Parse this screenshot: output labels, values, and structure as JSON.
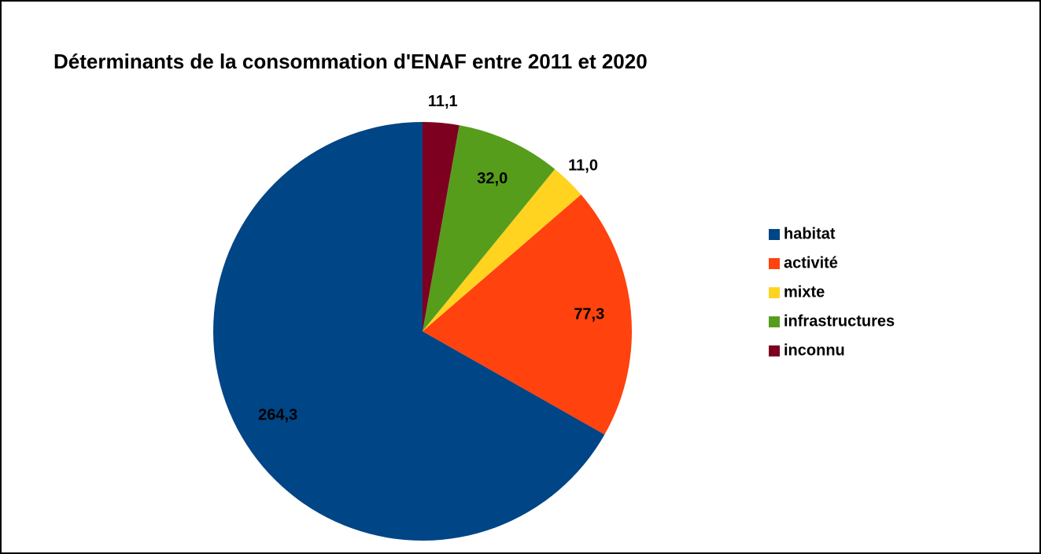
{
  "chart_data": {
    "type": "pie",
    "title": "Déterminants de la consommation d'ENAF entre 2011 et 2020",
    "categories": [
      "habitat",
      "activité",
      "mixte",
      "infrastructures",
      "inconnu"
    ],
    "values": [
      264.3,
      77.3,
      11.0,
      32.0,
      11.1
    ],
    "value_labels": [
      "264,3",
      "77,3",
      "11,0",
      "32,0",
      "11,1"
    ],
    "colors": [
      "#004586",
      "#ff420e",
      "#ffd320",
      "#579d1c",
      "#7e0021"
    ],
    "legend": "right"
  }
}
